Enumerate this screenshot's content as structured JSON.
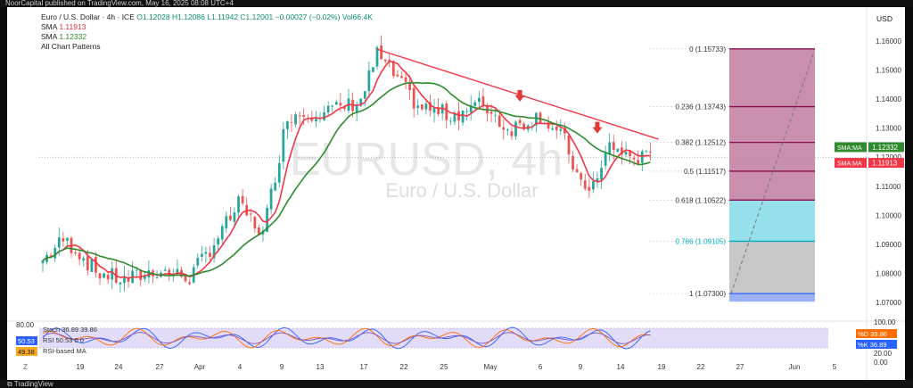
{
  "header": {
    "published_by": "NoorCapital published on TradingView.com, May 16, 2025 08:08 UTC+4"
  },
  "footer": {
    "brand": "TradingView"
  },
  "legend": {
    "symbol": "Euro / U.S. Dollar · 4h · ICE",
    "open": "O1.12028",
    "high": "H1.12086",
    "low": "L1.11942",
    "close": "C1.12001",
    "change": "−0.00027 (−0.02%)",
    "vol": "Vol66.4K",
    "sma1_label": "SMA",
    "sma1_value": "1.11913",
    "sma2_label": "SMA",
    "sma2_value": "1.12332",
    "patterns": "All Chart Patterns"
  },
  "currency": "USD",
  "watermark": {
    "symbol": "EURUSD, 4h",
    "name": "Euro / U.S. Dollar"
  },
  "oscillator": {
    "stoch_label": "Stoch",
    "stoch_k": "36.89",
    "stoch_d": "39.86",
    "rsi_label": "RSI",
    "rsi_value": "50.53",
    "rsi_ma_label": "RSI-based MA",
    "rsi_ma_value": "49.38",
    "level_top": "80.00",
    "zeros": "0  0",
    "right_100": "100.00",
    "right_20": "20.00",
    "right_0": "0.00",
    "badge_d": "%D",
    "badge_k": "%K"
  },
  "colors": {
    "up": "#26a69a",
    "down": "#ef5350",
    "sma_fast": "#f23645",
    "sma_slow": "#2e8b2e",
    "trend": "#f23645",
    "fib_top": "#c27ba0",
    "fib_mid": "#84dbe8",
    "fib_low": "#bdbdbd",
    "fib_bottom": "#8aa6f2",
    "fib_line": "#880e4f",
    "osc_band": "#d7cdf5",
    "stoch_k": "#2962ff",
    "stoch_d": "#ff6d00",
    "rsi": "#7e57c2"
  },
  "chart_data": {
    "type": "candlestick",
    "title": "Euro / U.S. Dollar · 4h · ICE",
    "ylabel": "USD",
    "ylim": [
      1.0672,
      1.1625
    ],
    "y_ticks": [
      "1.16000",
      "1.15000",
      "1.14000",
      "1.13000",
      "1.12000",
      "1.11000",
      "1.10000",
      "1.09000",
      "1.08000",
      "1.07000"
    ],
    "x_ticks": [
      "19",
      "24",
      "27",
      "Apr",
      "4",
      "9",
      "13",
      "17",
      "22",
      "25",
      "May",
      "6",
      "9",
      "14",
      "19",
      "22",
      "27",
      "Jun",
      "5"
    ],
    "close_anchors": [
      {
        "x": 0,
        "y": 1.0845
      },
      {
        "x": 5,
        "y": 1.0915
      },
      {
        "x": 8,
        "y": 1.0885
      },
      {
        "x": 13,
        "y": 1.0805
      },
      {
        "x": 20,
        "y": 1.0775
      },
      {
        "x": 28,
        "y": 1.081
      },
      {
        "x": 36,
        "y": 1.0785
      },
      {
        "x": 42,
        "y": 1.0905
      },
      {
        "x": 48,
        "y": 1.1035
      },
      {
        "x": 54,
        "y": 1.0935
      },
      {
        "x": 60,
        "y": 1.1345
      },
      {
        "x": 66,
        "y": 1.1355
      },
      {
        "x": 72,
        "y": 1.1365
      },
      {
        "x": 78,
        "y": 1.1395
      },
      {
        "x": 82,
        "y": 1.1555
      },
      {
        "x": 86,
        "y": 1.1485
      },
      {
        "x": 92,
        "y": 1.1375
      },
      {
        "x": 100,
        "y": 1.1345
      },
      {
        "x": 108,
        "y": 1.1385
      },
      {
        "x": 114,
        "y": 1.1295
      },
      {
        "x": 122,
        "y": 1.1345
      },
      {
        "x": 128,
        "y": 1.1255
      },
      {
        "x": 132,
        "y": 1.1095
      },
      {
        "x": 136,
        "y": 1.1115
      },
      {
        "x": 139,
        "y": 1.1245
      },
      {
        "x": 143,
        "y": 1.1205
      },
      {
        "x": 147,
        "y": 1.1195
      }
    ],
    "sma_fast": {
      "label": "SMA",
      "value": 1.11913
    },
    "sma_slow": {
      "label": "SMA",
      "value": 1.12332
    },
    "price_badges": [
      {
        "label": "SMA:MA",
        "value": "1.12332"
      },
      {
        "label": "SMA:MA",
        "value": "1.11913"
      }
    ],
    "trendline": {
      "from": {
        "x": 82,
        "y": 1.1572
      },
      "to": {
        "x": 151,
        "y": 1.1262
      }
    },
    "arrows": [
      {
        "x": 117,
        "y": 1.1395
      },
      {
        "x": 136,
        "y": 1.1285
      }
    ],
    "fibonacci": {
      "levels": [
        {
          "ratio": "0",
          "price": "1.15733",
          "v": 1.15733
        },
        {
          "ratio": "0.236",
          "price": "1.13743",
          "v": 1.13743
        },
        {
          "ratio": "0.382",
          "price": "1.12512",
          "v": 1.12512
        },
        {
          "ratio": "0.5",
          "price": "1.11517",
          "v": 1.11517
        },
        {
          "ratio": "0.618",
          "price": "1.10522",
          "v": 1.10522
        },
        {
          "ratio": "0.786",
          "price": "1.09105",
          "v": 1.09105
        },
        {
          "ratio": "1",
          "price": "1.07300",
          "v": 1.073
        }
      ]
    },
    "legend_position": "top-left",
    "grid": false
  }
}
